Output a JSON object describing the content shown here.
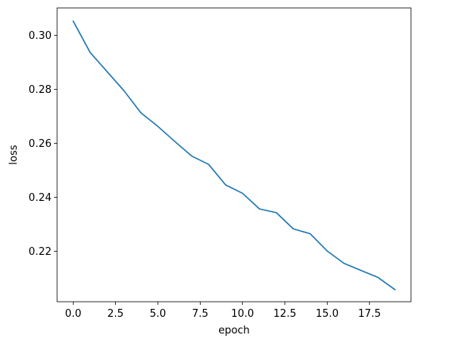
{
  "chart_data": {
    "type": "line",
    "title": "",
    "xlabel": "epoch",
    "ylabel": "loss",
    "xlim": [
      -0.95,
      19.95
    ],
    "ylim": [
      0.2013,
      0.3102
    ],
    "xticks": [
      0.0,
      2.5,
      5.0,
      7.5,
      10.0,
      12.5,
      15.0,
      17.5
    ],
    "xtick_labels": [
      "0.0",
      "2.5",
      "5.0",
      "7.5",
      "10.0",
      "12.5",
      "15.0",
      "17.5"
    ],
    "yticks": [
      0.22,
      0.24,
      0.26,
      0.28,
      0.3
    ],
    "ytick_labels": [
      "0.22",
      "0.24",
      "0.26",
      "0.28",
      "0.30"
    ],
    "grid": false,
    "legend": "none",
    "series": [
      {
        "color": "#1f77b4",
        "x": [
          0,
          1,
          2,
          3,
          4,
          5,
          6,
          7,
          8,
          9,
          10,
          11,
          12,
          13,
          14,
          15,
          16,
          17,
          18,
          19
        ],
        "values": [
          0.3053,
          0.2937,
          0.2866,
          0.2795,
          0.2713,
          0.2663,
          0.2607,
          0.2553,
          0.2522,
          0.2446,
          0.2415,
          0.2357,
          0.2343,
          0.2283,
          0.2265,
          0.2201,
          0.2155,
          0.2129,
          0.2103,
          0.2058
        ]
      }
    ]
  }
}
